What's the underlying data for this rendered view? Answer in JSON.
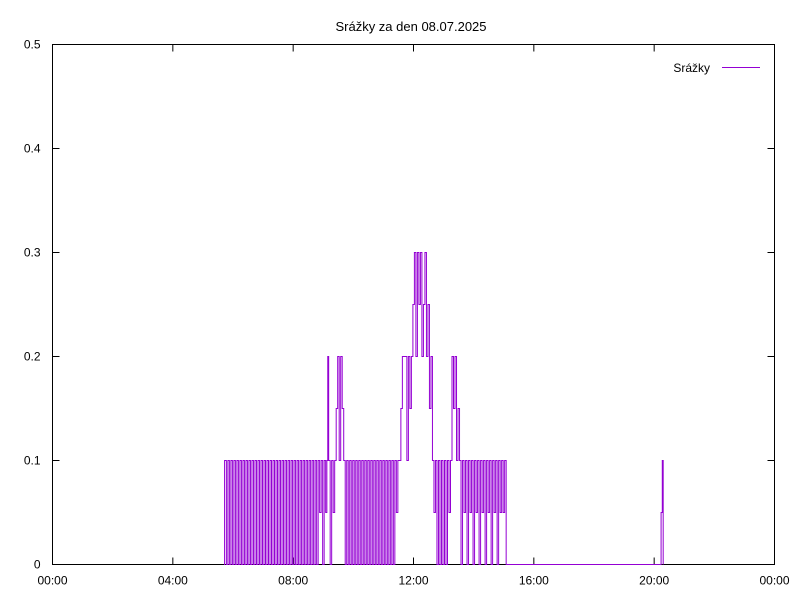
{
  "chart_data": {
    "type": "line",
    "title": "Srážky za den 08.07.2025",
    "xlabel": "",
    "ylabel": "",
    "x_unit": "hours",
    "xlim": [
      0,
      24
    ],
    "ylim": [
      0,
      0.5
    ],
    "x_ticks": [
      0,
      4,
      8,
      12,
      16,
      20,
      24
    ],
    "x_tick_labels": [
      "00:00",
      "04:00",
      "08:00",
      "12:00",
      "16:00",
      "20:00",
      "00:00"
    ],
    "y_ticks": [
      0,
      0.1,
      0.2,
      0.3,
      0.4,
      0.5
    ],
    "y_tick_labels": [
      "0",
      "0.1",
      "0.2",
      "0.3",
      "0.4",
      "0.5"
    ],
    "grid": false,
    "legend_position": "top-right",
    "series": [
      {
        "name": "Srážky",
        "color": "#9400d3",
        "points": [
          [
            5.7,
            0
          ],
          [
            5.72,
            0.1
          ],
          [
            5.78,
            0
          ],
          [
            5.83,
            0.1
          ],
          [
            5.88,
            0
          ],
          [
            5.93,
            0.1
          ],
          [
            5.98,
            0
          ],
          [
            6.03,
            0.1
          ],
          [
            6.08,
            0
          ],
          [
            6.13,
            0.1
          ],
          [
            6.18,
            0
          ],
          [
            6.23,
            0.1
          ],
          [
            6.28,
            0
          ],
          [
            6.33,
            0.1
          ],
          [
            6.38,
            0
          ],
          [
            6.43,
            0.1
          ],
          [
            6.48,
            0
          ],
          [
            6.53,
            0.1
          ],
          [
            6.58,
            0
          ],
          [
            6.63,
            0.1
          ],
          [
            6.68,
            0
          ],
          [
            6.73,
            0.1
          ],
          [
            6.78,
            0
          ],
          [
            6.83,
            0.1
          ],
          [
            6.88,
            0
          ],
          [
            6.93,
            0.1
          ],
          [
            6.98,
            0
          ],
          [
            7.03,
            0.1
          ],
          [
            7.08,
            0
          ],
          [
            7.13,
            0.1
          ],
          [
            7.18,
            0
          ],
          [
            7.23,
            0.1
          ],
          [
            7.28,
            0
          ],
          [
            7.33,
            0.1
          ],
          [
            7.38,
            0
          ],
          [
            7.43,
            0.1
          ],
          [
            7.48,
            0
          ],
          [
            7.53,
            0.1
          ],
          [
            7.58,
            0
          ],
          [
            7.63,
            0.1
          ],
          [
            7.68,
            0
          ],
          [
            7.73,
            0.1
          ],
          [
            7.78,
            0
          ],
          [
            7.83,
            0.1
          ],
          [
            7.88,
            0
          ],
          [
            7.93,
            0.1
          ],
          [
            7.98,
            0
          ],
          [
            8.03,
            0.1
          ],
          [
            8.08,
            0
          ],
          [
            8.13,
            0.1
          ],
          [
            8.18,
            0
          ],
          [
            8.23,
            0.1
          ],
          [
            8.28,
            0
          ],
          [
            8.33,
            0.1
          ],
          [
            8.38,
            0
          ],
          [
            8.43,
            0.1
          ],
          [
            8.48,
            0
          ],
          [
            8.53,
            0.1
          ],
          [
            8.58,
            0
          ],
          [
            8.63,
            0.1
          ],
          [
            8.68,
            0
          ],
          [
            8.73,
            0.1
          ],
          [
            8.78,
            0
          ],
          [
            8.83,
            0.1
          ],
          [
            8.88,
            0.05
          ],
          [
            8.93,
            0.1
          ],
          [
            8.98,
            0
          ],
          [
            9.03,
            0.1
          ],
          [
            9.08,
            0.05
          ],
          [
            9.12,
            0.1
          ],
          [
            9.15,
            0.2
          ],
          [
            9.18,
            0.1
          ],
          [
            9.23,
            0
          ],
          [
            9.28,
            0.1
          ],
          [
            9.33,
            0.05
          ],
          [
            9.38,
            0.1
          ],
          [
            9.43,
            0.15
          ],
          [
            9.48,
            0.2
          ],
          [
            9.53,
            0.1
          ],
          [
            9.58,
            0.2
          ],
          [
            9.63,
            0.15
          ],
          [
            9.68,
            0.1
          ],
          [
            9.73,
            0
          ],
          [
            9.78,
            0.1
          ],
          [
            9.83,
            0
          ],
          [
            9.88,
            0.1
          ],
          [
            9.93,
            0
          ],
          [
            9.98,
            0.1
          ],
          [
            10.03,
            0
          ],
          [
            10.08,
            0.1
          ],
          [
            10.13,
            0
          ],
          [
            10.18,
            0.1
          ],
          [
            10.23,
            0
          ],
          [
            10.28,
            0.1
          ],
          [
            10.33,
            0
          ],
          [
            10.38,
            0.1
          ],
          [
            10.43,
            0
          ],
          [
            10.48,
            0.1
          ],
          [
            10.53,
            0
          ],
          [
            10.58,
            0.1
          ],
          [
            10.63,
            0
          ],
          [
            10.68,
            0.1
          ],
          [
            10.73,
            0
          ],
          [
            10.78,
            0.1
          ],
          [
            10.83,
            0
          ],
          [
            10.88,
            0.1
          ],
          [
            10.93,
            0
          ],
          [
            10.98,
            0.1
          ],
          [
            11.03,
            0
          ],
          [
            11.08,
            0.1
          ],
          [
            11.13,
            0
          ],
          [
            11.18,
            0.1
          ],
          [
            11.23,
            0
          ],
          [
            11.28,
            0.1
          ],
          [
            11.33,
            0
          ],
          [
            11.38,
            0.1
          ],
          [
            11.43,
            0.05
          ],
          [
            11.48,
            0.1
          ],
          [
            11.53,
            0.1
          ],
          [
            11.58,
            0.15
          ],
          [
            11.63,
            0.2
          ],
          [
            11.68,
            0.2
          ],
          [
            11.73,
            0.2
          ],
          [
            11.78,
            0.1
          ],
          [
            11.83,
            0.2
          ],
          [
            11.88,
            0.15
          ],
          [
            11.93,
            0.2
          ],
          [
            11.98,
            0.25
          ],
          [
            12.03,
            0.3
          ],
          [
            12.08,
            0.2
          ],
          [
            12.13,
            0.3
          ],
          [
            12.18,
            0.25
          ],
          [
            12.23,
            0.3
          ],
          [
            12.28,
            0.2
          ],
          [
            12.33,
            0.25
          ],
          [
            12.38,
            0.3
          ],
          [
            12.43,
            0.2
          ],
          [
            12.48,
            0.25
          ],
          [
            12.53,
            0.15
          ],
          [
            12.58,
            0.2
          ],
          [
            12.63,
            0.1
          ],
          [
            12.68,
            0.05
          ],
          [
            12.73,
            0.1
          ],
          [
            12.78,
            0
          ],
          [
            12.83,
            0.1
          ],
          [
            12.88,
            0
          ],
          [
            12.93,
            0.1
          ],
          [
            12.98,
            0
          ],
          [
            13.03,
            0.1
          ],
          [
            13.08,
            0
          ],
          [
            13.13,
            0.1
          ],
          [
            13.18,
            0.05
          ],
          [
            13.23,
            0.1
          ],
          [
            13.28,
            0.2
          ],
          [
            13.33,
            0.15
          ],
          [
            13.38,
            0.2
          ],
          [
            13.43,
            0.1
          ],
          [
            13.48,
            0.15
          ],
          [
            13.53,
            0.1
          ],
          [
            13.58,
            0
          ],
          [
            13.63,
            0.1
          ],
          [
            13.68,
            0.05
          ],
          [
            13.73,
            0.1
          ],
          [
            13.78,
            0
          ],
          [
            13.83,
            0.1
          ],
          [
            13.88,
            0.05
          ],
          [
            13.93,
            0.1
          ],
          [
            13.98,
            0
          ],
          [
            14.03,
            0.1
          ],
          [
            14.08,
            0.05
          ],
          [
            14.13,
            0.1
          ],
          [
            14.18,
            0
          ],
          [
            14.23,
            0.1
          ],
          [
            14.28,
            0.05
          ],
          [
            14.33,
            0.1
          ],
          [
            14.38,
            0
          ],
          [
            14.43,
            0.1
          ],
          [
            14.48,
            0.05
          ],
          [
            14.53,
            0.1
          ],
          [
            14.58,
            0
          ],
          [
            14.63,
            0.1
          ],
          [
            14.68,
            0.05
          ],
          [
            14.73,
            0.1
          ],
          [
            14.78,
            0
          ],
          [
            14.83,
            0.1
          ],
          [
            14.88,
            0.05
          ],
          [
            14.93,
            0.1
          ],
          [
            14.98,
            0.05
          ],
          [
            15.03,
            0.1
          ],
          [
            15.08,
            0
          ],
          [
            20.2,
            0
          ],
          [
            20.23,
            0.05
          ],
          [
            20.27,
            0.1
          ],
          [
            20.3,
            0
          ]
        ]
      }
    ]
  }
}
